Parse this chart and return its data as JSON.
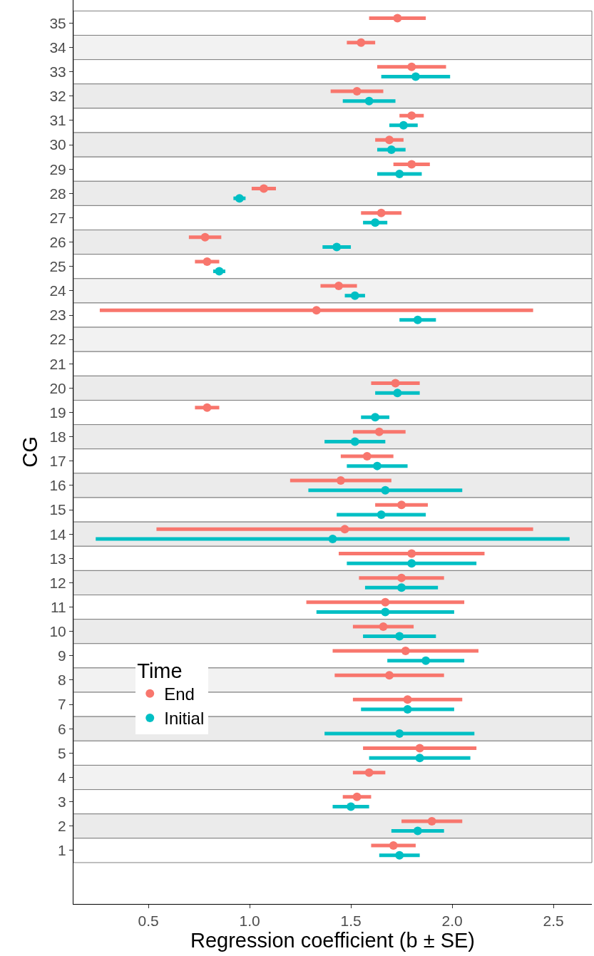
{
  "chart_data": {
    "type": "scatter",
    "orientation": "horizontal",
    "xlabel": "Regression coefficient (b ± SE)",
    "ylabel": "CG",
    "legend_title": "Time",
    "legend": "bottom left",
    "marker": "circle",
    "grid": false,
    "categories": [
      "35",
      "34",
      "33",
      "32",
      "31",
      "30",
      "29",
      "28",
      "27",
      "26",
      "25",
      "24",
      "23",
      "22",
      "21",
      "20",
      "19",
      "18",
      "17",
      "16",
      "15",
      "14",
      "13",
      "12",
      "11",
      "10",
      "9",
      "8",
      "7",
      "6",
      "5",
      "4",
      "3",
      "2",
      "1"
    ],
    "xlim": [
      0.13,
      2.69
    ],
    "xticks": [
      {
        "value": 0.5,
        "label": "0.5"
      },
      {
        "value": 1,
        "label": "1.0"
      },
      {
        "value": 1.5,
        "label": "1.5"
      },
      {
        "value": 2,
        "label": "2.0"
      },
      {
        "value": 2.5,
        "label": "2.5"
      }
    ],
    "series": [
      {
        "name": "End",
        "color": "#f8766d",
        "values": [
          1.73,
          1.55,
          1.8,
          1.53,
          1.8,
          1.69,
          1.8,
          1.07,
          1.65,
          0.78,
          0.79,
          1.44,
          1.33,
          null,
          null,
          1.72,
          0.79,
          1.64,
          1.58,
          1.45,
          1.75,
          1.47,
          1.8,
          1.75,
          1.67,
          1.66,
          1.77,
          1.69,
          1.78,
          null,
          1.84,
          1.59,
          1.53,
          1.9,
          1.71
        ],
        "errors": [
          0.14,
          0.07,
          0.17,
          0.13,
          0.06,
          0.07,
          0.09,
          0.06,
          0.1,
          0.08,
          0.06,
          0.09,
          1.07,
          null,
          null,
          0.12,
          0.06,
          0.13,
          0.13,
          0.25,
          0.13,
          0.93,
          0.36,
          0.21,
          0.39,
          0.15,
          0.36,
          0.27,
          0.27,
          null,
          0.28,
          0.08,
          0.07,
          0.15,
          0.11
        ]
      },
      {
        "name": "Initial",
        "color": "#00bfc4",
        "values": [
          null,
          null,
          1.82,
          1.59,
          1.76,
          1.7,
          1.74,
          0.95,
          1.62,
          1.43,
          0.85,
          1.52,
          1.83,
          null,
          null,
          1.73,
          1.62,
          1.52,
          1.63,
          1.67,
          1.65,
          1.41,
          1.8,
          1.75,
          1.67,
          1.74,
          1.87,
          null,
          1.78,
          1.74,
          1.84,
          null,
          1.5,
          1.83,
          1.74
        ],
        "errors": [
          null,
          null,
          0.17,
          0.13,
          0.07,
          0.07,
          0.11,
          0.03,
          0.06,
          0.07,
          0.03,
          0.05,
          0.09,
          null,
          null,
          0.11,
          0.07,
          0.15,
          0.15,
          0.38,
          0.22,
          1.17,
          0.32,
          0.18,
          0.34,
          0.18,
          0.19,
          null,
          0.23,
          0.37,
          0.25,
          null,
          0.09,
          0.13,
          0.1
        ]
      }
    ],
    "bands": [
      {
        "axis": "y",
        "from": "35",
        "to": "35",
        "color": "#ffffff"
      },
      {
        "axis": "y",
        "from": "34",
        "to": "34",
        "color": "#f2f2f2"
      },
      {
        "axis": "y",
        "from": "33",
        "to": "33",
        "color": "#ffffff"
      },
      {
        "axis": "y",
        "from": "32",
        "to": "32",
        "color": "#ebebeb"
      },
      {
        "axis": "y",
        "from": "31",
        "to": "31",
        "color": "#ffffff"
      },
      {
        "axis": "y",
        "from": "30",
        "to": "30",
        "color": "#ebebeb"
      },
      {
        "axis": "y",
        "from": "29",
        "to": "29",
        "color": "#ffffff"
      },
      {
        "axis": "y",
        "from": "28",
        "to": "28",
        "color": "#ebebeb"
      },
      {
        "axis": "y",
        "from": "27",
        "to": "27",
        "color": "#ffffff"
      },
      {
        "axis": "y",
        "from": "26",
        "to": "26",
        "color": "#ebebeb"
      },
      {
        "axis": "y",
        "from": "25",
        "to": "25",
        "color": "#ffffff"
      },
      {
        "axis": "y",
        "from": "24",
        "to": "24",
        "color": "#f2f2f2"
      },
      {
        "axis": "y",
        "from": "23",
        "to": "23",
        "color": "#ffffff"
      },
      {
        "axis": "y",
        "from": "22",
        "to": "22",
        "color": "#f2f2f2"
      },
      {
        "axis": "y",
        "from": "21",
        "to": "21",
        "color": "#ffffff"
      },
      {
        "axis": "y",
        "from": "20",
        "to": "20",
        "color": "#ebebeb"
      },
      {
        "axis": "y",
        "from": "19",
        "to": "19",
        "color": "#ffffff"
      },
      {
        "axis": "y",
        "from": "18",
        "to": "18",
        "color": "#ebebeb"
      },
      {
        "axis": "y",
        "from": "17",
        "to": "17",
        "color": "#ffffff"
      },
      {
        "axis": "y",
        "from": "16",
        "to": "16",
        "color": "#ebebeb"
      },
      {
        "axis": "y",
        "from": "15",
        "to": "15",
        "color": "#ffffff"
      },
      {
        "axis": "y",
        "from": "14",
        "to": "14",
        "color": "#ebebeb"
      },
      {
        "axis": "y",
        "from": "13",
        "to": "13",
        "color": "#ffffff"
      },
      {
        "axis": "y",
        "from": "12",
        "to": "12",
        "color": "#ebebeb"
      },
      {
        "axis": "y",
        "from": "11",
        "to": "11",
        "color": "#ffffff"
      },
      {
        "axis": "y",
        "from": "10",
        "to": "10",
        "color": "#ebebeb"
      },
      {
        "axis": "y",
        "from": "9",
        "to": "9",
        "color": "#ffffff"
      },
      {
        "axis": "y",
        "from": "8",
        "to": "8",
        "color": "#f2f2f2"
      },
      {
        "axis": "y",
        "from": "7",
        "to": "7",
        "color": "#ffffff"
      },
      {
        "axis": "y",
        "from": "6",
        "to": "6",
        "color": "#ebebeb"
      },
      {
        "axis": "y",
        "from": "5",
        "to": "5",
        "color": "#ffffff"
      },
      {
        "axis": "y",
        "from": "4",
        "to": "4",
        "color": "#f2f2f2"
      },
      {
        "axis": "y",
        "from": "3",
        "to": "3",
        "color": "#ffffff"
      },
      {
        "axis": "y",
        "from": "2",
        "to": "2",
        "color": "#ebebeb"
      },
      {
        "axis": "y",
        "from": "1",
        "to": "1",
        "color": "#ffffff"
      }
    ]
  }
}
